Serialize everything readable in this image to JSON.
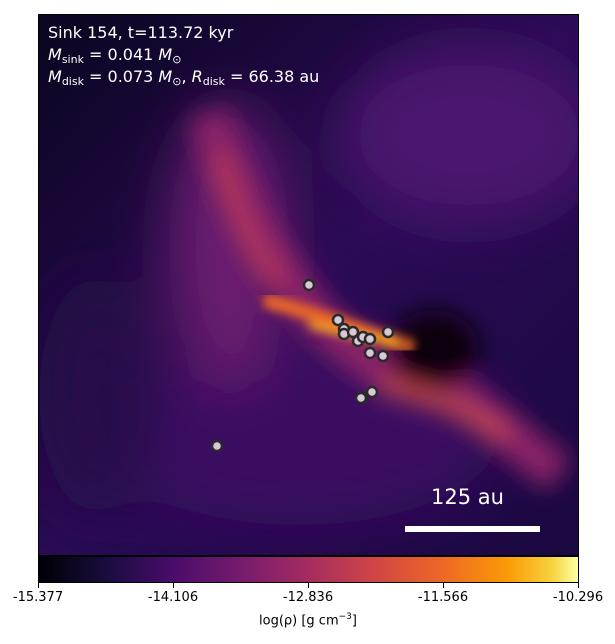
{
  "chart_data": {
    "type": "heatmap",
    "title_lines": [
      "Sink 154, t=113.72 kyr"
    ],
    "annotation": {
      "line1": "Sink 154, t=113.72 kyr",
      "m_sink_symbol": "M",
      "m_sink_sub": "sink",
      "m_sink_value": " = 0.041 ",
      "m_sun_symbol": "M",
      "sun_sub": "⊙",
      "m_disk_symbol": "M",
      "m_disk_sub": "disk",
      "m_disk_value": " = 0.073 ",
      "r_disk_symbol": "R",
      "r_disk_sub": "disk",
      "r_disk_value": " = 66.38 au"
    },
    "scale_bar_label": "125 au",
    "colormap": "inferno",
    "colorbar": {
      "range": [
        -15.377,
        -10.296
      ],
      "ticks": [
        "-15.377",
        "-14.106",
        "-12.836",
        "-11.566",
        "-10.296"
      ],
      "label": "log(ρ) [g cm",
      "label_exp": "−3",
      "label_end": "]"
    },
    "sink_marker_color": "#d8c8d8",
    "sink_count": 15
  }
}
